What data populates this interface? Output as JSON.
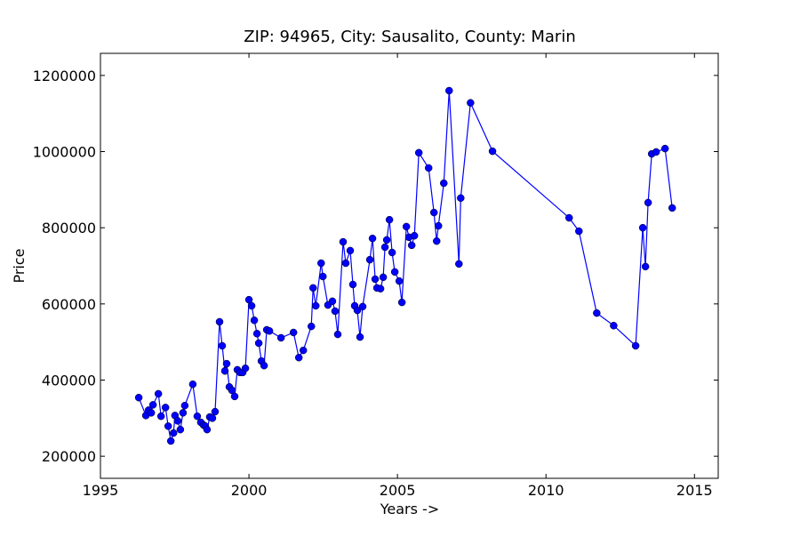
{
  "chart_data": {
    "type": "line",
    "title": "ZIP: 94965, City: Sausalito, County: Marin",
    "x_label": "Years ->",
    "y_label": "Price",
    "color": "#0000ff",
    "markers": true,
    "xlim": [
      1995,
      2015.8
    ],
    "xticks": [
      1995,
      2000,
      2005,
      2010,
      2015
    ],
    "ylim": [
      142000,
      1258000
    ],
    "yticks": [
      200000,
      400000,
      600000,
      800000,
      1000000,
      1200000
    ],
    "x": [
      1996.29,
      1996.53,
      1996.62,
      1996.71,
      1996.77,
      1996.95,
      1997.04,
      1997.19,
      1997.28,
      1997.37,
      1997.46,
      1997.51,
      1997.6,
      1997.69,
      1997.78,
      1997.84,
      1998.11,
      1998.26,
      1998.38,
      1998.47,
      1998.53,
      1998.59,
      1998.68,
      1998.77,
      1998.86,
      1999.01,
      1999.1,
      1999.19,
      1999.25,
      1999.34,
      1999.43,
      1999.52,
      1999.61,
      1999.7,
      1999.79,
      1999.88,
      2000.0,
      2000.09,
      2000.18,
      2000.27,
      2000.33,
      2000.42,
      2000.51,
      2000.6,
      2000.69,
      2001.08,
      2001.5,
      2001.68,
      2001.83,
      2002.1,
      2002.16,
      2002.25,
      2002.43,
      2002.49,
      2002.66,
      2002.81,
      2002.9,
      2002.99,
      2003.17,
      2003.26,
      2003.41,
      2003.5,
      2003.56,
      2003.65,
      2003.74,
      2003.83,
      2004.07,
      2004.16,
      2004.25,
      2004.31,
      2004.43,
      2004.52,
      2004.58,
      2004.64,
      2004.73,
      2004.82,
      2004.91,
      2005.06,
      2005.15,
      2005.3,
      2005.39,
      2005.48,
      2005.57,
      2005.72,
      2006.05,
      2006.23,
      2006.32,
      2006.38,
      2006.56,
      2006.74,
      2007.07,
      2007.13,
      2007.46,
      2008.2,
      2010.78,
      2011.11,
      2011.71,
      2012.28,
      2013.02,
      2013.26,
      2013.35,
      2013.44,
      2013.56,
      2013.71,
      2014.01,
      2014.25
    ],
    "values": [
      354000,
      307000,
      321000,
      314000,
      335000,
      364000,
      305000,
      328000,
      279000,
      240000,
      261000,
      307000,
      293000,
      270000,
      314000,
      333000,
      389000,
      305000,
      289000,
      282000,
      279000,
      270000,
      303000,
      300000,
      317000,
      553000,
      490000,
      424000,
      443000,
      382000,
      373000,
      357000,
      427000,
      420000,
      420000,
      431000,
      611000,
      595000,
      557000,
      522000,
      497000,
      450000,
      438000,
      532000,
      529000,
      511000,
      525000,
      459000,
      478000,
      541000,
      642000,
      595000,
      707000,
      672000,
      597000,
      607000,
      581000,
      520000,
      763000,
      707000,
      740000,
      651000,
      595000,
      583000,
      513000,
      593000,
      716000,
      772000,
      665000,
      642000,
      640000,
      670000,
      749000,
      768000,
      821000,
      735000,
      684000,
      660000,
      604000,
      803000,
      775000,
      754000,
      779000,
      997000,
      957000,
      840000,
      765000,
      805000,
      917000,
      1160000,
      705000,
      878000,
      1128000,
      1001000,
      826000,
      791000,
      576000,
      543000,
      490000,
      800000,
      698000,
      866000,
      994000,
      999000,
      1008000,
      852000
    ]
  }
}
